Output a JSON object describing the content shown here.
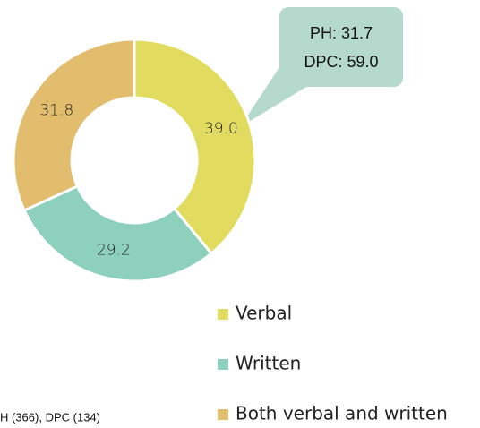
{
  "chart_data": {
    "type": "donut",
    "categories": [
      "Verbal",
      "Written",
      "Both verbal and written"
    ],
    "values": [
      39.0,
      29.2,
      31.8
    ],
    "value_labels": [
      "39.0",
      "29.2",
      "31.8"
    ],
    "colors": [
      "#e1dc5f",
      "#8dd0bc",
      "#e2bd6e"
    ],
    "annotation": [
      "PH: 31.7",
      "DPC: 59.0"
    ],
    "footnote": "H (366), DPC (134)"
  }
}
